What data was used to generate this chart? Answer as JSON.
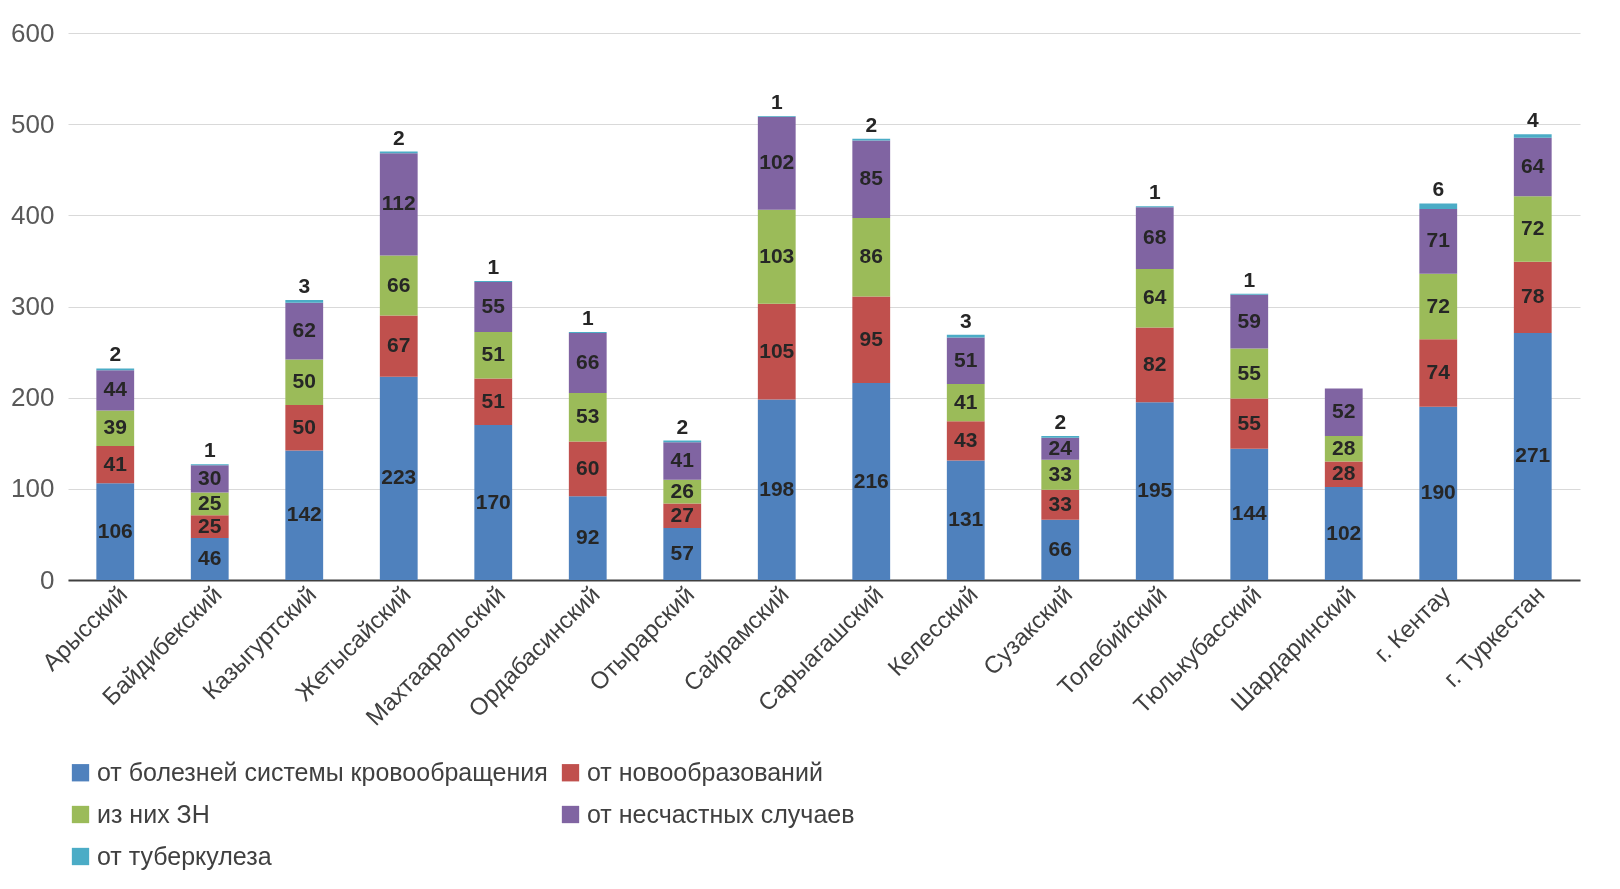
{
  "chart_data": {
    "type": "bar",
    "stacked": true,
    "data_labels": true,
    "grid": "y",
    "legend": "bottom",
    "categories": [
      "Арысский",
      "Байдибекский",
      "Казыгуртский",
      "Жетысайский",
      "Махтааральский",
      "Ордабасинский",
      "Отырарский",
      "Сайрамский",
      "Сарыагашский",
      "Келесский",
      "Сузакский",
      "Толебийский",
      "Тюлькубасский",
      "Шардаринский",
      "г. Кентау",
      "г. Туркестан"
    ],
    "ylim": [
      0,
      600
    ],
    "yticks": [
      0,
      100,
      200,
      300,
      400,
      500,
      600
    ],
    "series": [
      {
        "name": "от болезней системы кровообращения",
        "color": "#4f81bd",
        "values": [
          106,
          46,
          142,
          223,
          170,
          92,
          57,
          198,
          216,
          131,
          66,
          195,
          144,
          102,
          190,
          271
        ]
      },
      {
        "name": "от новообразований",
        "color": "#c0504d",
        "values": [
          41,
          25,
          50,
          67,
          51,
          60,
          27,
          105,
          95,
          43,
          33,
          82,
          55,
          28,
          74,
          78
        ]
      },
      {
        "name": "из них ЗН",
        "color": "#9bbb59",
        "values": [
          39,
          25,
          50,
          66,
          51,
          53,
          26,
          103,
          86,
          41,
          33,
          64,
          55,
          28,
          72,
          72
        ]
      },
      {
        "name": "от несчастных случаев",
        "color": "#8064a2",
        "values": [
          44,
          30,
          62,
          112,
          55,
          66,
          41,
          102,
          85,
          51,
          24,
          68,
          59,
          52,
          71,
          64
        ]
      },
      {
        "name": "от туберкулеза",
        "color": "#4bacc6",
        "values": [
          2,
          1,
          3,
          2,
          1,
          1,
          2,
          1,
          2,
          3,
          2,
          1,
          1,
          null,
          6,
          4
        ]
      }
    ]
  }
}
